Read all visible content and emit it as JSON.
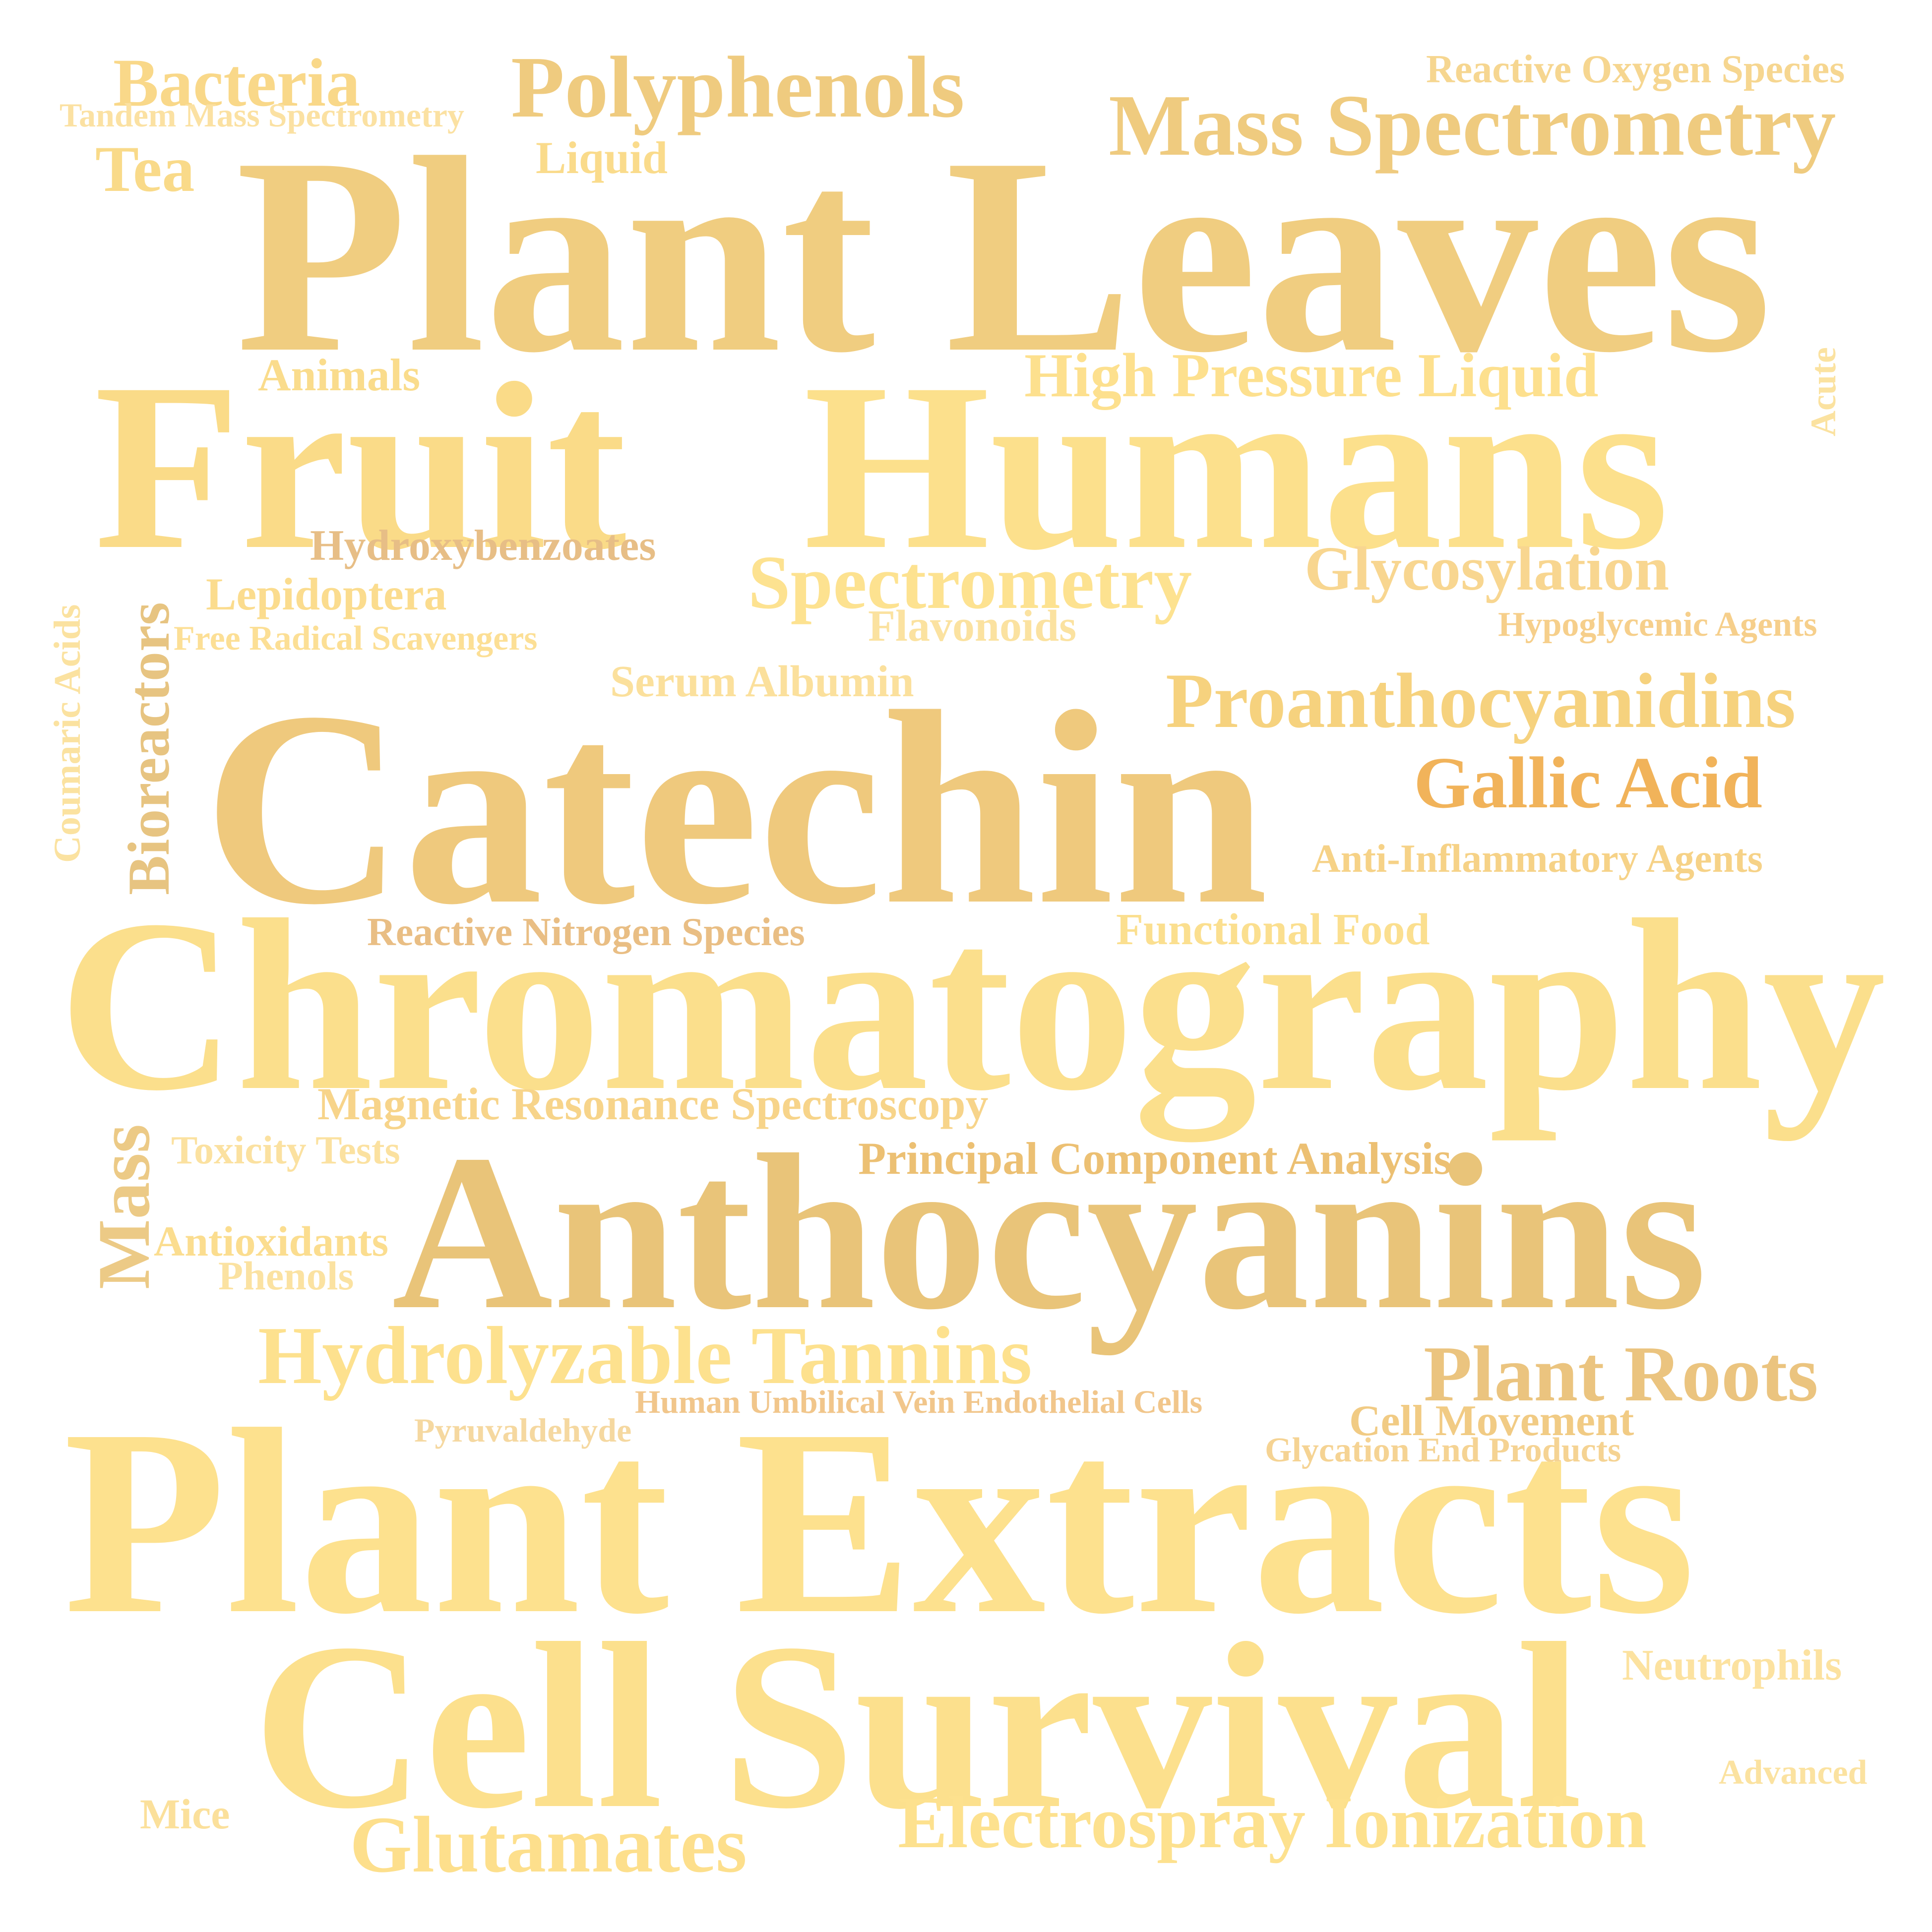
{
  "words": [
    {
      "text": "Plant Leaves",
      "color": "#f0cd80"
    },
    {
      "text": "Fruit",
      "color": "#fadb88"
    },
    {
      "text": "Humans",
      "color": "#fce08c"
    },
    {
      "text": "Catechin",
      "color": "#efc97d"
    },
    {
      "text": "Chromatography",
      "color": "#fbdf8c"
    },
    {
      "text": "Anthocyanins",
      "color": "#e9c479"
    },
    {
      "text": "Plant Extracts",
      "color": "#fde18e"
    },
    {
      "text": "Cell Survival",
      "color": "#fce08d"
    },
    {
      "text": "Polyphenols",
      "color": "#efcb7f"
    },
    {
      "text": "Mass Spectrometry",
      "color": "#efcb7f"
    },
    {
      "text": "Bacteria",
      "color": "#f9d889"
    },
    {
      "text": "Tandem Mass Spectrometry",
      "color": "#fbe1a2"
    },
    {
      "text": "Tea",
      "color": "#f9da89"
    },
    {
      "text": "Liquid",
      "color": "#fadb8b"
    },
    {
      "text": "Reactive Oxygen Species",
      "color": "#f6d690"
    },
    {
      "text": "Animals",
      "color": "#fadc8c"
    },
    {
      "text": "High Pressure Liquid",
      "color": "#fde08e"
    },
    {
      "text": "Acute",
      "color": "#fbe2a0"
    },
    {
      "text": "Hydroxybenzoates",
      "color": "#e7be86"
    },
    {
      "text": "Spectrometry",
      "color": "#fde290"
    },
    {
      "text": "Glycosylation",
      "color": "#f8d690"
    },
    {
      "text": "Lepidoptera",
      "color": "#fbdc8e"
    },
    {
      "text": "Free Radical Scavengers",
      "color": "#fcdf95"
    },
    {
      "text": "Flavonoids",
      "color": "#fbe2a0"
    },
    {
      "text": "Hypoglycemic Agents",
      "color": "#f6cf8b"
    },
    {
      "text": "Coumaric Acids",
      "color": "#fbe2a0"
    },
    {
      "text": "Bioreactors",
      "color": "#e7c481"
    },
    {
      "text": "Serum Albumin",
      "color": "#fbe09c"
    },
    {
      "text": "Proanthocyanidins",
      "color": "#f6d27e"
    },
    {
      "text": "Gallic Acid",
      "color": "#f1b35a"
    },
    {
      "text": "Anti-Inflammatory Agents",
      "color": "#f6d287"
    },
    {
      "text": "Reactive Nitrogen Species",
      "color": "#e9be84"
    },
    {
      "text": "Functional Food",
      "color": "#fbdf8f"
    },
    {
      "text": "Magnetic Resonance Spectroscopy",
      "color": "#f7d48a"
    },
    {
      "text": "Toxicity Tests",
      "color": "#fbe1a0"
    },
    {
      "text": "Principal Component Analysis",
      "color": "#ecc073"
    },
    {
      "text": "Mass",
      "color": "#ecca86"
    },
    {
      "text": "Antioxidants",
      "color": "#fbdd8f"
    },
    {
      "text": "Phenols",
      "color": "#fbe2a1"
    },
    {
      "text": "Hydrolyzable Tannins",
      "color": "#fde18e"
    },
    {
      "text": "Plant Roots",
      "color": "#ebc47f"
    },
    {
      "text": "Human Umbilical Vein Endothelial Cells",
      "color": "#f1c68b"
    },
    {
      "text": "Pyruvaldehyde",
      "color": "#f5d8a0"
    },
    {
      "text": "Cell Movement",
      "color": "#f1cb84"
    },
    {
      "text": "Glycation End Products",
      "color": "#f5d393"
    },
    {
      "text": "Neutrophils",
      "color": "#fce2a0"
    },
    {
      "text": "Advanced",
      "color": "#fbe2a0"
    },
    {
      "text": "Mice",
      "color": "#fbe09b"
    },
    {
      "text": "Glutamates",
      "color": "#fddf8c"
    },
    {
      "text": "Electrospray Ionization",
      "color": "#fde18e"
    }
  ]
}
